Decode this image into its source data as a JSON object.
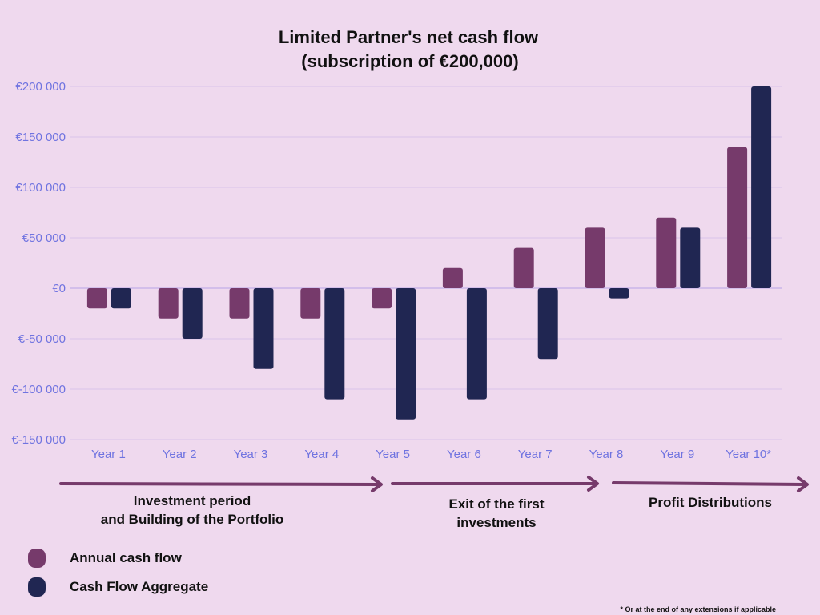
{
  "chart_data": {
    "type": "bar",
    "title": [
      "Limited Partner's net cash flow",
      "(subscription of €200,000)"
    ],
    "categories": [
      "Year 1",
      "Year 2",
      "Year 3",
      "Year 4",
      "Year 5",
      "Year 6",
      "Year 7",
      "Year 8",
      "Year 9",
      "Year 10*"
    ],
    "series": [
      {
        "name": "Annual cash flow",
        "color": "#763a6b",
        "values": [
          -20000,
          -30000,
          -30000,
          -30000,
          -20000,
          20000,
          40000,
          60000,
          70000,
          140000
        ]
      },
      {
        "name": "Cash Flow Aggregate",
        "color": "#202652",
        "values": [
          -20000,
          -50000,
          -80000,
          -110000,
          -130000,
          -110000,
          -70000,
          -10000,
          60000,
          200000
        ]
      }
    ],
    "y_ticks": [
      200000,
      150000,
      100000,
      50000,
      0,
      -50000,
      -100000,
      -150000
    ],
    "y_tick_labels": [
      "€200 000",
      "€150 000",
      "€100 000",
      "€50 000",
      "€0",
      "€-50 000",
      "€-100 000",
      "€-150 000"
    ],
    "ylim": [
      -150000,
      200000
    ],
    "grid": true,
    "legend_position": "bottom-left",
    "xlabel": "",
    "ylabel": ""
  },
  "phases": [
    {
      "lines": [
        "Investment period",
        "and Building of the Portfolio"
      ],
      "start_category": 0,
      "end_category": 4
    },
    {
      "lines": [
        "Exit of the first",
        "investments"
      ],
      "start_category": 5,
      "end_category": 7
    },
    {
      "lines": [
        "Profit Distributions"
      ],
      "start_category": 8,
      "end_category": 9
    }
  ],
  "arrow_color": "#763a6b",
  "footnote": "* Or at the end of any extensions if applicable"
}
